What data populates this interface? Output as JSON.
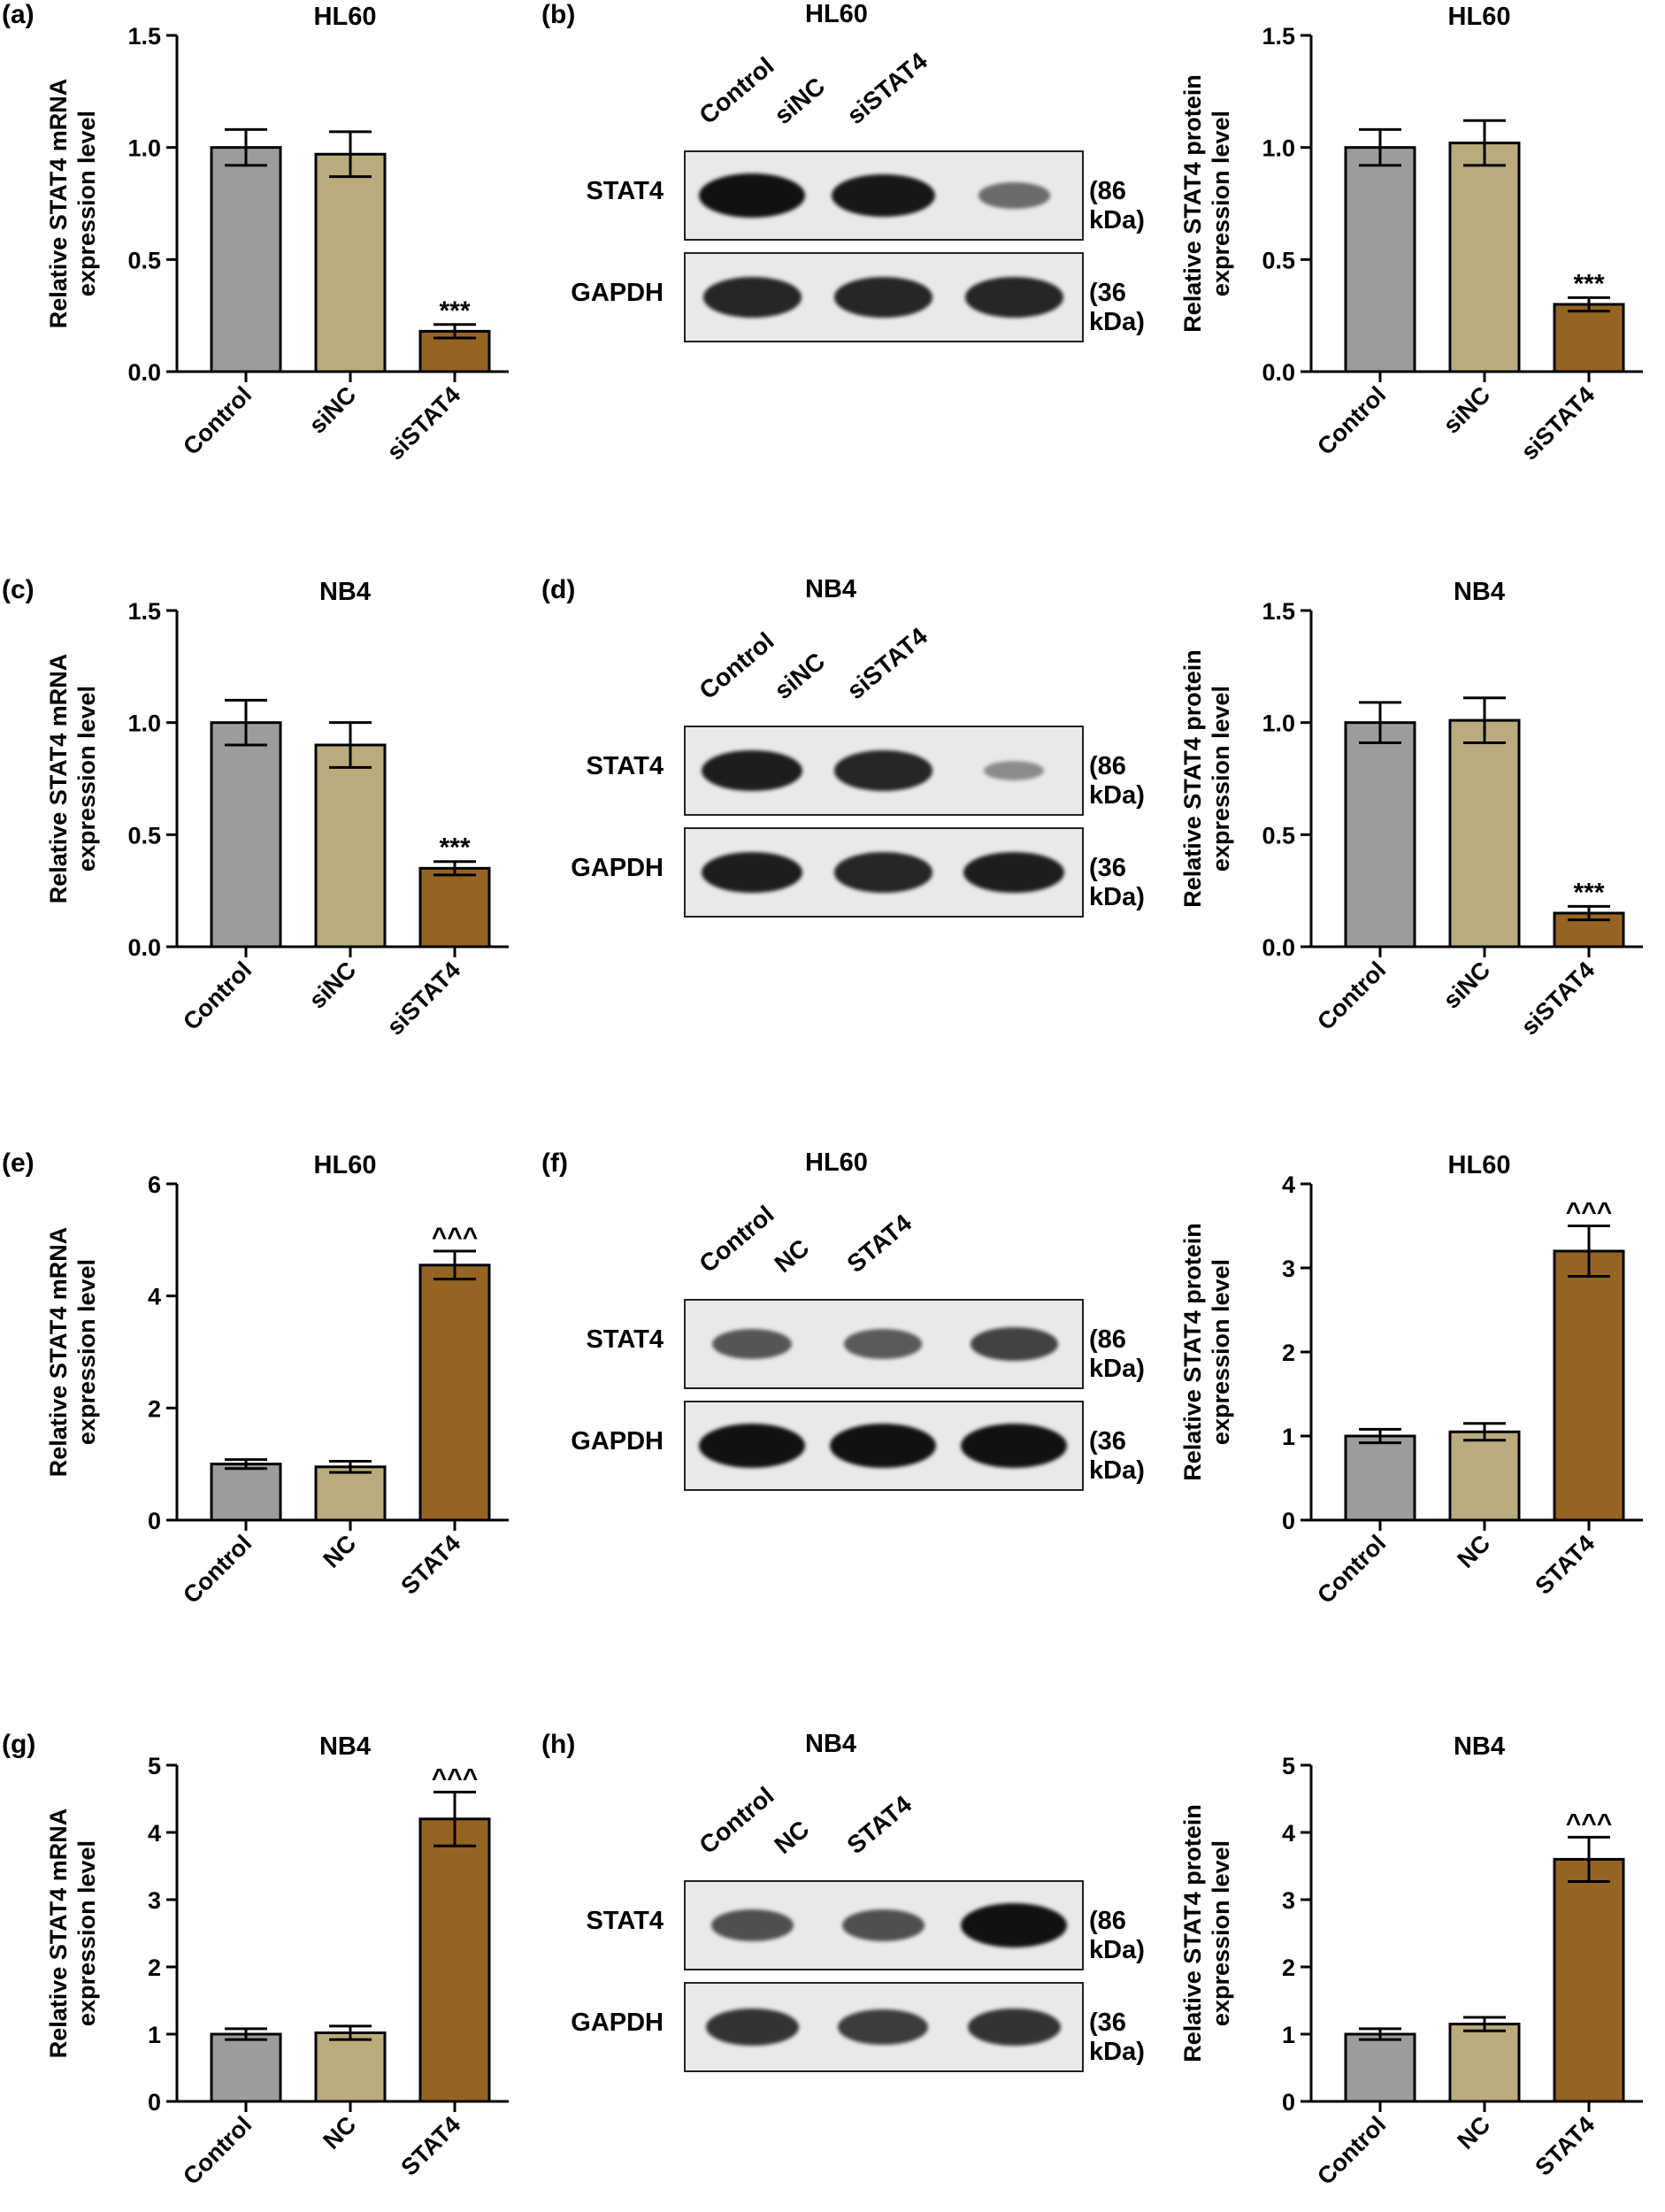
{
  "panel_labels": [
    "(a)",
    "(b)",
    "(c)",
    "(d)",
    "(e)",
    "(f)",
    "(g)",
    "(h)"
  ],
  "colors": {
    "control": "#9c9c9c",
    "nc": "#b9ab7b",
    "treat": "#956423",
    "band": "#111111"
  },
  "chart_data": [
    {
      "id": "a",
      "type": "bar",
      "title": "HL60",
      "ylabel": [
        "Relative STAT4 mRNA",
        "expression level"
      ],
      "categories": [
        "Control",
        "siNC",
        "siSTAT4"
      ],
      "values": [
        1.0,
        0.97,
        0.18
      ],
      "errors": [
        0.08,
        0.1,
        0.03
      ],
      "ylim": [
        0,
        1.5
      ],
      "yticks": [
        "0.0",
        "0.5",
        "1.0",
        "1.5"
      ],
      "annotation": "***",
      "grid": false
    },
    {
      "id": "b",
      "type": "bar",
      "title": "HL60",
      "ylabel": [
        "Relative STAT4 protein",
        "expression level"
      ],
      "categories": [
        "Control",
        "siNC",
        "siSTAT4"
      ],
      "values": [
        1.0,
        1.02,
        0.3
      ],
      "errors": [
        0.08,
        0.1,
        0.03
      ],
      "ylim": [
        0,
        1.5
      ],
      "yticks": [
        "0.0",
        "0.5",
        "1.0",
        "1.5"
      ],
      "annotation": "***",
      "grid": false
    },
    {
      "id": "c",
      "type": "bar",
      "title": "NB4",
      "ylabel": [
        "Relative STAT4 mRNA",
        "expression level"
      ],
      "categories": [
        "Control",
        "siNC",
        "siSTAT4"
      ],
      "values": [
        1.0,
        0.9,
        0.35
      ],
      "errors": [
        0.1,
        0.1,
        0.03
      ],
      "ylim": [
        0,
        1.5
      ],
      "yticks": [
        "0.0",
        "0.5",
        "1.0",
        "1.5"
      ],
      "annotation": "***",
      "grid": false
    },
    {
      "id": "d",
      "type": "bar",
      "title": "NB4",
      "ylabel": [
        "Relative STAT4 protein",
        "expression level"
      ],
      "categories": [
        "Control",
        "siNC",
        "siSTAT4"
      ],
      "values": [
        1.0,
        1.01,
        0.15
      ],
      "errors": [
        0.09,
        0.1,
        0.03
      ],
      "ylim": [
        0,
        1.5
      ],
      "yticks": [
        "0.0",
        "0.5",
        "1.0",
        "1.5"
      ],
      "annotation": "***",
      "grid": false
    },
    {
      "id": "e",
      "type": "bar",
      "title": "HL60",
      "ylabel": [
        "Relative STAT4 mRNA",
        "expression level"
      ],
      "categories": [
        "Control",
        "NC",
        "STAT4"
      ],
      "values": [
        1.0,
        0.95,
        4.55
      ],
      "errors": [
        0.08,
        0.1,
        0.25
      ],
      "ylim": [
        0,
        6
      ],
      "yticks": [
        "0",
        "2",
        "4",
        "6"
      ],
      "annotation": "^^^",
      "grid": false
    },
    {
      "id": "f",
      "type": "bar",
      "title": "HL60",
      "ylabel": [
        "Relative STAT4 protein",
        "expression level"
      ],
      "categories": [
        "Control",
        "NC",
        "STAT4"
      ],
      "values": [
        1.0,
        1.05,
        3.2
      ],
      "errors": [
        0.08,
        0.1,
        0.3
      ],
      "ylim": [
        0,
        4
      ],
      "yticks": [
        "0",
        "1",
        "2",
        "3",
        "4"
      ],
      "annotation": "^^^",
      "grid": false
    },
    {
      "id": "g",
      "type": "bar",
      "title": "NB4",
      "ylabel": [
        "Relative STAT4 mRNA",
        "expression level"
      ],
      "categories": [
        "Control",
        "NC",
        "STAT4"
      ],
      "values": [
        1.0,
        1.02,
        4.2
      ],
      "errors": [
        0.08,
        0.1,
        0.4
      ],
      "ylim": [
        0,
        5
      ],
      "yticks": [
        "0",
        "1",
        "2",
        "3",
        "4",
        "5"
      ],
      "annotation": "^^^",
      "grid": false
    },
    {
      "id": "h",
      "type": "bar",
      "title": "NB4",
      "ylabel": [
        "Relative STAT4 protein",
        "expression level"
      ],
      "categories": [
        "Control",
        "NC",
        "STAT4"
      ],
      "values": [
        1.0,
        1.15,
        3.6
      ],
      "errors": [
        0.08,
        0.1,
        0.33
      ],
      "ylim": [
        0,
        5
      ],
      "yticks": [
        "0",
        "1",
        "2",
        "3",
        "4",
        "5"
      ],
      "annotation": "^^^",
      "grid": false
    }
  ],
  "blots": [
    {
      "id": "b",
      "title": "HL60",
      "lanes": [
        "Control",
        "siNC",
        "siSTAT4"
      ],
      "rows": [
        {
          "name": "STAT4",
          "kda": "(86 kDa)",
          "intensity": [
            1.0,
            0.95,
            0.35
          ]
        },
        {
          "name": "GAPDH",
          "kda": "(36 kDa)",
          "intensity": [
            0.85,
            0.85,
            0.85
          ]
        }
      ]
    },
    {
      "id": "d",
      "title": "NB4",
      "lanes": [
        "Control",
        "siNC",
        "siSTAT4"
      ],
      "rows": [
        {
          "name": "STAT4",
          "kda": "(86 kDa)",
          "intensity": [
            0.9,
            0.85,
            0.12
          ]
        },
        {
          "name": "GAPDH",
          "kda": "(36 kDa)",
          "intensity": [
            0.9,
            0.85,
            0.9
          ]
        }
      ]
    },
    {
      "id": "f",
      "title": "HL60",
      "lanes": [
        "Control",
        "NC",
        "STAT4"
      ],
      "rows": [
        {
          "name": "STAT4",
          "kda": "(86 kDa)",
          "intensity": [
            0.5,
            0.48,
            0.65
          ]
        },
        {
          "name": "GAPDH",
          "kda": "(36 kDa)",
          "intensity": [
            1.0,
            1.0,
            1.0
          ]
        }
      ]
    },
    {
      "id": "h",
      "title": "NB4",
      "lanes": [
        "Control",
        "NC",
        "STAT4"
      ],
      "rows": [
        {
          "name": "STAT4",
          "kda": "(86 kDa)",
          "intensity": [
            0.55,
            0.55,
            1.0
          ]
        },
        {
          "name": "GAPDH",
          "kda": "(36 kDa)",
          "intensity": [
            0.75,
            0.7,
            0.75
          ]
        }
      ]
    }
  ]
}
